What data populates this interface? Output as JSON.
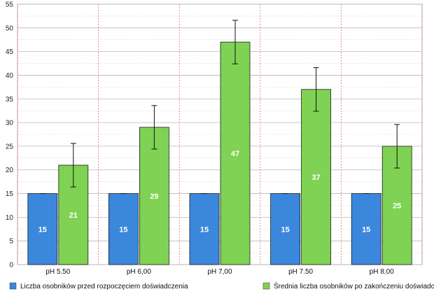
{
  "chart_data": {
    "type": "bar",
    "categories": [
      "pH 5.50",
      "pH 6,00",
      "pH 7,00",
      "pH 7.50",
      "pH 8,00"
    ],
    "series": [
      {
        "name": "Liczba osobników przed rozpoczęciem doświadczenia",
        "color": "#3b87dc",
        "values": [
          15,
          15,
          15,
          15,
          15
        ],
        "error": [
          0,
          0,
          0,
          0,
          0
        ],
        "labels": [
          "15",
          "15",
          "15",
          "15",
          "15"
        ]
      },
      {
        "name": "Średnia liczba osobników po zakończeniu doświadczenia",
        "color": "#7fd253",
        "values": [
          21,
          29,
          47,
          37,
          25
        ],
        "error": [
          4.6,
          4.6,
          4.6,
          4.6,
          4.6
        ],
        "labels": [
          "21",
          "29",
          "47",
          "37",
          "25"
        ]
      }
    ],
    "ylim": [
      0,
      55
    ],
    "yticks": [
      "0",
      "5",
      "10",
      "15",
      "20",
      "25",
      "30",
      "35",
      "40",
      "45",
      "50",
      "55"
    ],
    "grid": true,
    "legend_position": "bottom"
  }
}
